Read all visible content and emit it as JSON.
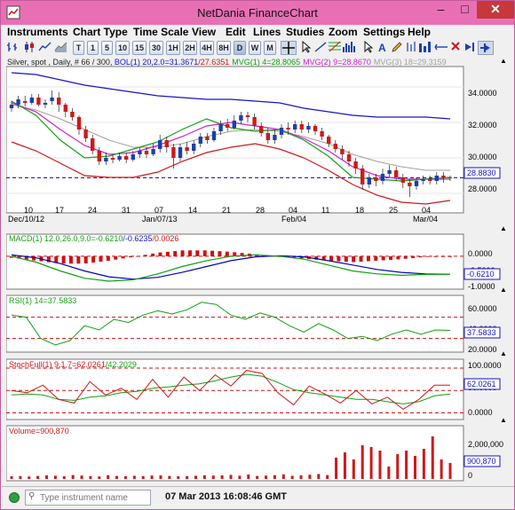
{
  "window": {
    "title": "NetDania FinanceChart"
  },
  "menu": [
    "Instruments",
    "Chart Type",
    "Time Scale",
    "View",
    "Edit",
    "Lines",
    "Studies",
    "Zoom",
    "Settings",
    "Help"
  ],
  "toolbar": {
    "periods": [
      "T",
      "1",
      "5",
      "10",
      "15",
      "30",
      "1H",
      "2H",
      "4H",
      "8H",
      "D",
      "W",
      "M"
    ],
    "active_period": "D"
  },
  "colors": {
    "price_up": "#1a3fb0",
    "price_down": "#d01818",
    "boll": "#1515c8",
    "mvg1": "#16a016",
    "mvg2": "#d020d0",
    "mvg3": "#a0a0a0",
    "ref_line": "#0000c0",
    "red_dash": "#d01010",
    "green": "#10a010"
  },
  "main_panel": {
    "legend": {
      "prefix": "Silver, spot , Daily, # 66 / 300, ",
      "boll": "BOL(1) 20,2.0=31.3671",
      "boll_low": "/27.6351",
      "mvg1": "MVG(1) 4=28.8065",
      "mvg2": "MVG(2) 9=28.8670",
      "mvg3": "MVG(3) 18=29.3159"
    },
    "y_ticks": [
      "34.0000",
      "32.0000",
      "30.0000",
      "28.0000"
    ],
    "price_badge": "28.8830",
    "x_ticks": [
      "10",
      "17",
      "24",
      "31",
      "07",
      "14",
      "21",
      "28",
      "04",
      "11",
      "18",
      "25",
      "04"
    ],
    "x_sub": [
      "Dec/10/12",
      "Jan/07/13",
      "Feb/04",
      "Mar/04"
    ]
  },
  "macd_panel": {
    "legend": {
      "a": "MACD(1) 12.0,26.0,9.0=-0.6210",
      "b": "/-0.6235",
      "c": "/0.0026"
    },
    "y_ticks": [
      "0.0000",
      "-0.5000",
      "-1.0000"
    ],
    "badge": "-0.6210"
  },
  "rsi_panel": {
    "legend": "RSI(1) 14=37.5833",
    "y_ticks": [
      "60.0000",
      "40.0000",
      "20.0000"
    ],
    "badge": "37.5833"
  },
  "stoch_panel": {
    "legend": {
      "a": "StochFull(1) 9,1,7=62.0261",
      "b": "/42.2029"
    },
    "y_ticks": [
      "100.0000",
      "50.0000",
      "0.0000"
    ],
    "badge": "62.0261"
  },
  "volume_panel": {
    "legend": "Volume=900,870",
    "y_ticks": [
      "2,000,000",
      "0"
    ],
    "badge": "900,870"
  },
  "status": {
    "search_placeholder": "Type instrument name",
    "timestamp": "07 Mar 2013 16:08:46 GMT"
  },
  "chart_data": {
    "type": "candlestick",
    "instrument": "Silver, spot",
    "interval": "Daily",
    "price_ylim": [
      27.2,
      35.0
    ],
    "candles": [
      {
        "o": 32.8,
        "c": 33.0,
        "h": 33.2,
        "l": 32.6
      },
      {
        "o": 33.0,
        "c": 33.3,
        "h": 33.5,
        "l": 32.8
      },
      {
        "o": 33.2,
        "c": 33.1,
        "h": 33.5,
        "l": 32.9
      },
      {
        "o": 33.1,
        "c": 33.4,
        "h": 33.6,
        "l": 33.0
      },
      {
        "o": 33.4,
        "c": 33.0,
        "h": 33.6,
        "l": 32.9
      },
      {
        "o": 33.0,
        "c": 33.1,
        "h": 33.3,
        "l": 32.8
      },
      {
        "o": 33.2,
        "c": 33.4,
        "h": 33.8,
        "l": 33.0
      },
      {
        "o": 33.4,
        "c": 33.0,
        "h": 33.7,
        "l": 32.6
      },
      {
        "o": 33.0,
        "c": 32.6,
        "h": 33.1,
        "l": 32.3
      },
      {
        "o": 32.6,
        "c": 32.3,
        "h": 32.8,
        "l": 32.1
      },
      {
        "o": 32.3,
        "c": 31.6,
        "h": 32.4,
        "l": 31.3
      },
      {
        "o": 31.6,
        "c": 31.1,
        "h": 31.8,
        "l": 30.9
      },
      {
        "o": 31.1,
        "c": 30.4,
        "h": 31.3,
        "l": 30.2
      },
      {
        "o": 30.4,
        "c": 29.8,
        "h": 30.6,
        "l": 29.6
      },
      {
        "o": 29.8,
        "c": 30.0,
        "h": 30.3,
        "l": 29.6
      },
      {
        "o": 30.0,
        "c": 29.9,
        "h": 30.2,
        "l": 29.7
      },
      {
        "o": 29.9,
        "c": 30.1,
        "h": 30.3,
        "l": 29.8
      },
      {
        "o": 30.1,
        "c": 29.9,
        "h": 30.3,
        "l": 29.7
      },
      {
        "o": 29.9,
        "c": 30.2,
        "h": 30.4,
        "l": 29.8
      },
      {
        "o": 30.2,
        "c": 30.4,
        "h": 30.6,
        "l": 30.0
      },
      {
        "o": 30.4,
        "c": 30.2,
        "h": 30.6,
        "l": 30.0
      },
      {
        "o": 30.2,
        "c": 30.5,
        "h": 30.8,
        "l": 30.1
      },
      {
        "o": 30.5,
        "c": 31.0,
        "h": 31.3,
        "l": 30.3
      },
      {
        "o": 31.0,
        "c": 30.6,
        "h": 31.2,
        "l": 30.3
      },
      {
        "o": 30.6,
        "c": 30.0,
        "h": 30.8,
        "l": 29.4
      },
      {
        "o": 30.0,
        "c": 30.6,
        "h": 30.8,
        "l": 29.8
      },
      {
        "o": 30.6,
        "c": 30.4,
        "h": 30.9,
        "l": 30.2
      },
      {
        "o": 30.4,
        "c": 30.8,
        "h": 31.0,
        "l": 30.2
      },
      {
        "o": 30.8,
        "c": 31.2,
        "h": 31.4,
        "l": 30.6
      },
      {
        "o": 31.2,
        "c": 31.0,
        "h": 31.4,
        "l": 30.8
      },
      {
        "o": 31.0,
        "c": 31.5,
        "h": 31.7,
        "l": 30.9
      },
      {
        "o": 31.5,
        "c": 31.9,
        "h": 32.1,
        "l": 31.3
      },
      {
        "o": 31.9,
        "c": 31.7,
        "h": 32.2,
        "l": 31.5
      },
      {
        "o": 31.7,
        "c": 32.1,
        "h": 32.4,
        "l": 31.6
      },
      {
        "o": 32.1,
        "c": 32.4,
        "h": 32.6,
        "l": 31.9
      },
      {
        "o": 32.4,
        "c": 32.3,
        "h": 32.6,
        "l": 32.0
      },
      {
        "o": 32.3,
        "c": 31.8,
        "h": 32.5,
        "l": 31.6
      },
      {
        "o": 31.8,
        "c": 31.4,
        "h": 32.0,
        "l": 31.2
      },
      {
        "o": 31.4,
        "c": 31.0,
        "h": 31.7,
        "l": 30.8
      },
      {
        "o": 31.0,
        "c": 31.3,
        "h": 31.6,
        "l": 30.8
      },
      {
        "o": 31.3,
        "c": 31.7,
        "h": 31.9,
        "l": 31.1
      },
      {
        "o": 31.7,
        "c": 31.6,
        "h": 32.0,
        "l": 31.3
      },
      {
        "o": 31.6,
        "c": 31.9,
        "h": 32.1,
        "l": 31.4
      },
      {
        "o": 31.9,
        "c": 31.6,
        "h": 32.1,
        "l": 31.4
      },
      {
        "o": 31.6,
        "c": 31.8,
        "h": 32.0,
        "l": 31.4
      },
      {
        "o": 31.8,
        "c": 31.5,
        "h": 31.9,
        "l": 31.3
      },
      {
        "o": 31.5,
        "c": 31.2,
        "h": 31.7,
        "l": 31.0
      },
      {
        "o": 31.2,
        "c": 30.8,
        "h": 31.3,
        "l": 30.6
      },
      {
        "o": 30.8,
        "c": 30.5,
        "h": 31.0,
        "l": 30.3
      },
      {
        "o": 30.5,
        "c": 30.2,
        "h": 30.7,
        "l": 29.9
      },
      {
        "o": 30.2,
        "c": 29.8,
        "h": 30.4,
        "l": 29.5
      },
      {
        "o": 29.8,
        "c": 29.4,
        "h": 30.0,
        "l": 29.1
      },
      {
        "o": 29.4,
        "c": 28.5,
        "h": 29.6,
        "l": 28.2
      },
      {
        "o": 28.5,
        "c": 28.9,
        "h": 29.1,
        "l": 28.3
      },
      {
        "o": 28.9,
        "c": 28.7,
        "h": 29.1,
        "l": 28.4
      },
      {
        "o": 28.7,
        "c": 29.1,
        "h": 29.4,
        "l": 28.5
      },
      {
        "o": 29.1,
        "c": 29.3,
        "h": 29.6,
        "l": 28.9
      },
      {
        "o": 29.3,
        "c": 28.9,
        "h": 29.5,
        "l": 28.7
      },
      {
        "o": 28.9,
        "c": 28.6,
        "h": 29.1,
        "l": 28.3
      },
      {
        "o": 28.6,
        "c": 28.4,
        "h": 28.8,
        "l": 27.8
      },
      {
        "o": 28.4,
        "c": 28.7,
        "h": 28.9,
        "l": 28.2
      },
      {
        "o": 28.7,
        "c": 28.8,
        "h": 29.0,
        "l": 28.5
      },
      {
        "o": 28.8,
        "c": 28.7,
        "h": 29.0,
        "l": 28.5
      },
      {
        "o": 28.7,
        "c": 29.0,
        "h": 29.2,
        "l": 28.5
      },
      {
        "o": 29.0,
        "c": 28.9,
        "h": 29.2,
        "l": 28.6
      },
      {
        "o": 28.9,
        "c": 28.88,
        "h": 29.0,
        "l": 28.7
      }
    ],
    "boll_upper": [
      34.8,
      34.7,
      34.4,
      34.1,
      33.9,
      33.7,
      33.5,
      33.4,
      33.3,
      33.3,
      33.2,
      33.1,
      32.8,
      32.6,
      32.4,
      32.3,
      32.3,
      32.3,
      32.2
    ],
    "boll_lower": [
      30.9,
      30.4,
      29.7,
      29.0,
      28.9,
      28.9,
      29.2,
      29.8,
      30.3,
      30.6,
      30.8,
      30.5,
      30.0,
      29.3,
      28.5,
      27.9,
      27.5,
      27.4,
      27.6
    ],
    "mvg3": [
      33.0,
      32.7,
      32.2,
      31.6,
      31.0,
      30.6,
      30.6,
      30.8,
      31.2,
      31.5,
      31.6,
      31.5,
      31.2,
      30.8,
      30.2,
      29.8,
      29.5,
      29.3,
      29.3
    ],
    "mvg2": [
      33.1,
      32.6,
      31.6,
      30.7,
      30.2,
      30.3,
      30.7,
      31.2,
      31.8,
      32.0,
      31.8,
      31.6,
      31.1,
      30.4,
      29.5,
      29.0,
      28.8,
      28.8,
      28.9
    ],
    "mvg1": [
      33.2,
      32.4,
      31.0,
      30.0,
      30.1,
      30.5,
      30.9,
      31.6,
      32.2,
      31.7,
      31.5,
      31.6,
      31.0,
      30.1,
      28.9,
      28.8,
      28.7,
      28.8,
      28.8
    ],
    "macd": {
      "ylim": [
        -1.0,
        0.3
      ],
      "macd": [
        0.0,
        -0.2,
        -0.5,
        -0.75,
        -0.85,
        -0.8,
        -0.6,
        -0.35,
        -0.15,
        0.0,
        0.05,
        0.0,
        -0.1,
        -0.3,
        -0.5,
        -0.6,
        -0.65,
        -0.62,
        -0.62
      ],
      "signal": [
        0.05,
        -0.05,
        -0.25,
        -0.5,
        -0.7,
        -0.78,
        -0.72,
        -0.55,
        -0.35,
        -0.15,
        -0.02,
        0.02,
        -0.02,
        -0.15,
        -0.3,
        -0.45,
        -0.55,
        -0.6,
        -0.62
      ],
      "histogram": [
        -0.05,
        -0.15,
        -0.25,
        -0.25,
        -0.15,
        -0.02,
        0.12,
        0.2,
        0.2,
        0.15,
        0.07,
        -0.02,
        -0.08,
        -0.15,
        -0.2,
        -0.15,
        -0.1,
        -0.02,
        0.0
      ]
    },
    "rsi": {
      "ylim": [
        18,
        68
      ],
      "levels": [
        30,
        50
      ],
      "values": [
        52,
        50,
        30,
        24,
        28,
        42,
        38,
        48,
        45,
        52,
        56,
        53,
        57,
        64,
        62,
        52,
        48,
        54,
        50,
        42,
        36,
        44,
        38,
        30,
        32,
        28,
        34,
        38,
        34,
        38,
        37.6
      ]
    },
    "stochastic": {
      "ylim": [
        -5,
        110
      ],
      "levels": [
        0,
        50,
        100
      ],
      "k": [
        50,
        45,
        62,
        30,
        22,
        70,
        40,
        55,
        30,
        75,
        35,
        80,
        50,
        85,
        60,
        95,
        88,
        45,
        18,
        60,
        42,
        22,
        50,
        20,
        35,
        8,
        30,
        62,
        62
      ],
      "d": [
        40,
        42,
        40,
        30,
        28,
        35,
        38,
        45,
        48,
        55,
        58,
        62,
        65,
        72,
        80,
        86,
        82,
        68,
        52,
        45,
        40,
        35,
        30,
        30,
        25,
        20,
        25,
        38,
        42
      ]
    },
    "volume": {
      "ylim": [
        0,
        2800000
      ],
      "values": [
        150000,
        160000,
        140000,
        170000,
        200000,
        180000,
        150000,
        220000,
        190000,
        160000,
        140000,
        210000,
        170000,
        150000,
        180000,
        160000,
        190000,
        200000,
        170000,
        150000,
        160000,
        180000,
        210000,
        190000,
        200000,
        230000,
        180000,
        250000,
        170000,
        190000,
        210000,
        260000,
        180000,
        200000,
        240000,
        280000,
        220000,
        1200000,
        1500000,
        1100000,
        1900000,
        1800000,
        1600000,
        700000,
        1400000,
        1600000,
        1300000,
        1700000,
        2400000,
        1100000,
        900870
      ]
    }
  }
}
